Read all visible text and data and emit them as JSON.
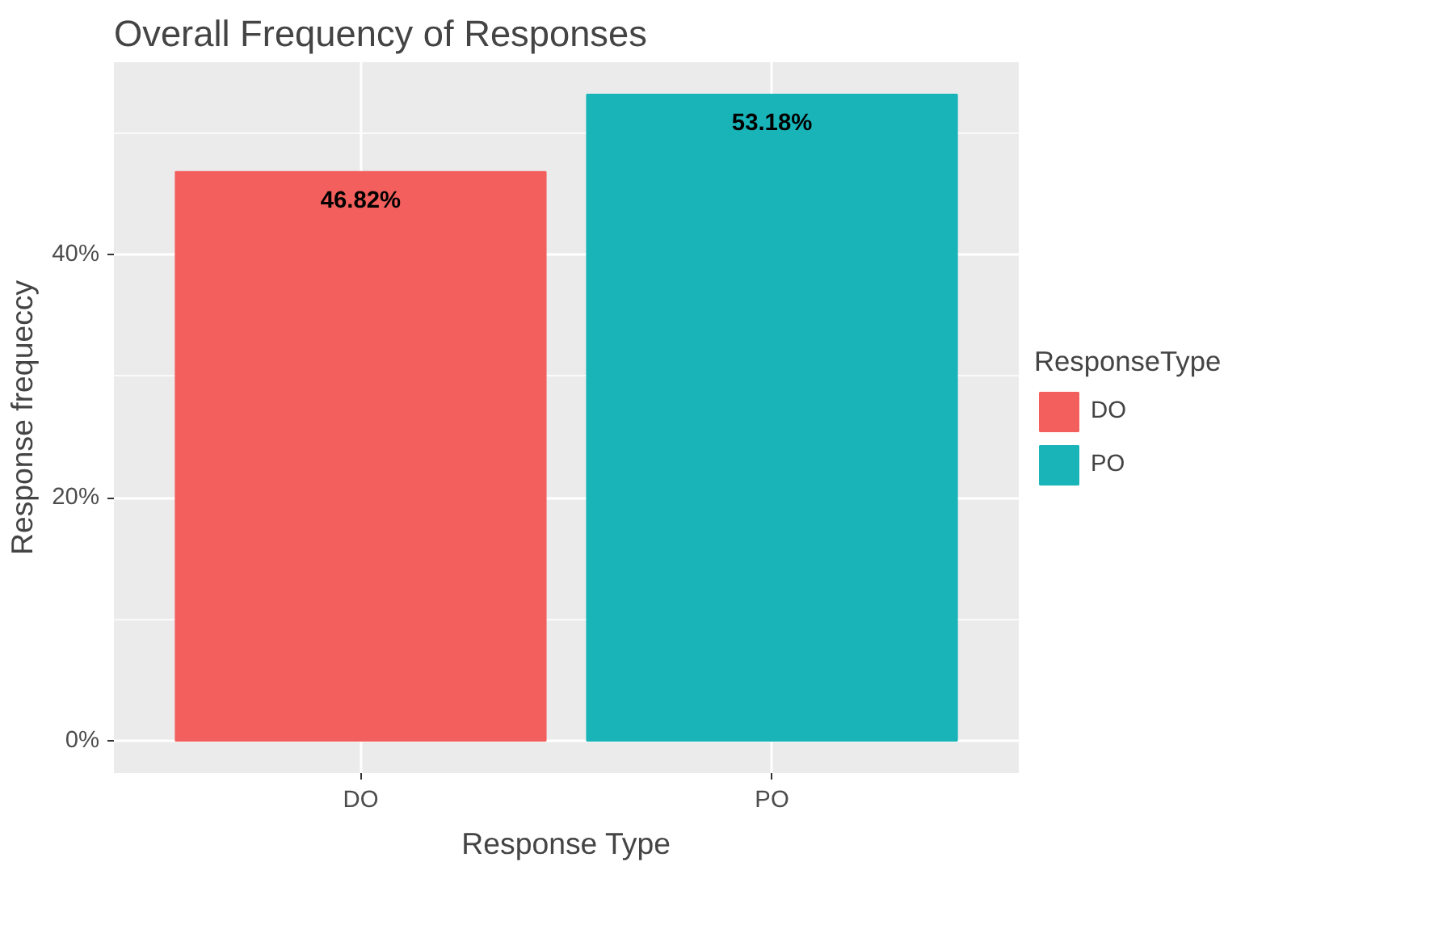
{
  "chart_data": {
    "type": "bar",
    "title": "Overall Frequency of Responses",
    "xlabel": "Response Type",
    "ylabel": "Response frequeccy",
    "legend_title": "ResponseType",
    "categories": [
      "DO",
      "PO"
    ],
    "stacked": true,
    "series": [
      {
        "name": "DO",
        "color": "#f25f5c",
        "values": [
          46.82,
          null
        ],
        "value_labels": [
          "46.82%",
          null
        ]
      },
      {
        "name": "PO",
        "color": "#18b4b8",
        "values": [
          null,
          53.18
        ],
        "value_labels": [
          null,
          "53.18%"
        ]
      }
    ],
    "ylim": [
      -2.66,
      55.84
    ],
    "yticks": [
      {
        "value": 0,
        "label": "0%"
      },
      {
        "value": 10,
        "label": null
      },
      {
        "value": 20,
        "label": "20%"
      },
      {
        "value": 30,
        "label": null
      },
      {
        "value": 40,
        "label": "40%"
      },
      {
        "value": 50,
        "label": null
      }
    ],
    "grid": true,
    "legend": "right"
  }
}
